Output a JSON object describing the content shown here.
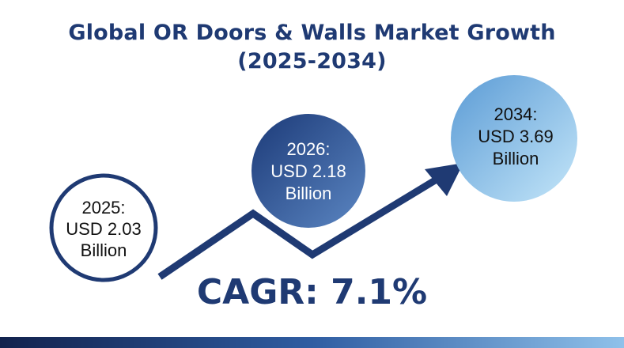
{
  "title_line1": "Global OR Doors & Walls Market Growth",
  "title_line2": "(2025-2034)",
  "cagr_label": "CAGR: 7.1%",
  "colors": {
    "title": "#1f3a73",
    "arrow": "#1f3a73",
    "circle_2025_border": "#1f3a73",
    "circle_2026_dark": "#1c3a78",
    "circle_2026_light": "#5b86c2",
    "circle_2034_dark": "#5b9bd5",
    "circle_2034_light": "#bfe2f7"
  },
  "chart_data": {
    "type": "bubble-infographic",
    "title": "Global OR Doors & Walls Market Growth (2025-2034)",
    "unit": "USD Billion",
    "points": [
      {
        "year": "2025",
        "value": 2.03,
        "label_year": "2025:",
        "label_value": "USD 2.03",
        "label_unit": "Billion",
        "style": "outline"
      },
      {
        "year": "2026",
        "value": 2.18,
        "label_year": "2026:",
        "label_value": "USD 2.18",
        "label_unit": "Billion",
        "style": "dark-filled"
      },
      {
        "year": "2034",
        "value": 3.69,
        "label_year": "2034:",
        "label_value": "USD 3.69",
        "label_unit": "Billion",
        "style": "light-filled"
      }
    ],
    "cagr": "7.1%"
  }
}
